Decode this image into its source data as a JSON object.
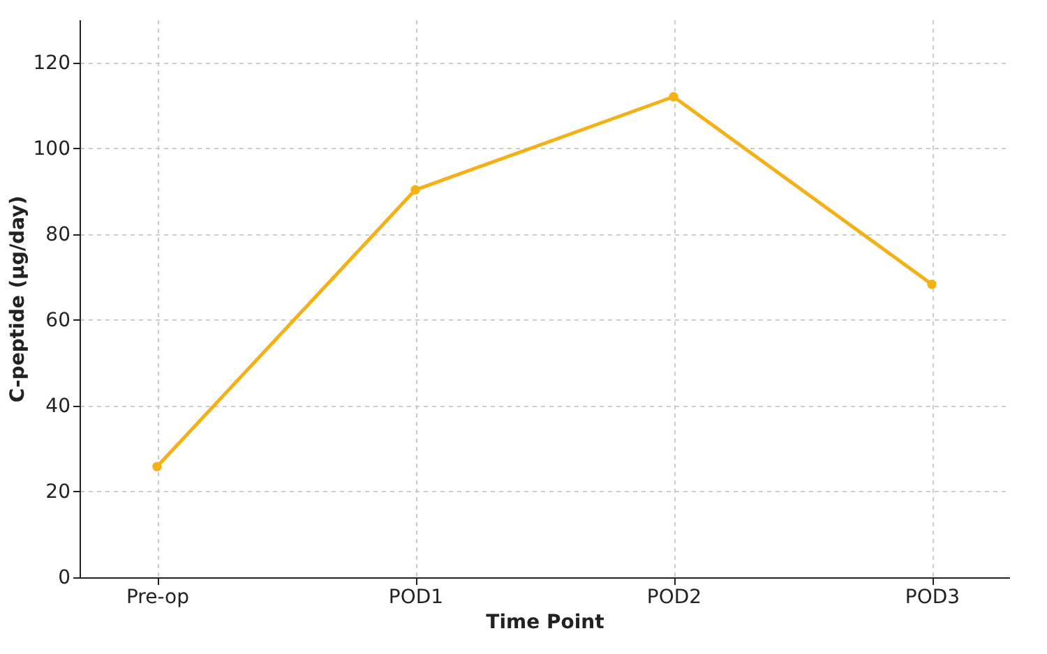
{
  "chart_data": {
    "type": "line",
    "xlabel": "Time Point",
    "ylabel": "C-peptide (µg/day)",
    "categories": [
      "Pre-op",
      "POD1",
      "POD2",
      "POD3"
    ],
    "series": [
      {
        "color": "#f5b015",
        "values": [
          25.8,
          90.3,
          112,
          68.3
        ]
      }
    ],
    "ylim": [
      0,
      130
    ],
    "yticks": [
      0,
      20,
      40,
      60,
      80,
      100,
      120
    ],
    "grid": true,
    "marker": "circle",
    "line_style": "solid"
  }
}
